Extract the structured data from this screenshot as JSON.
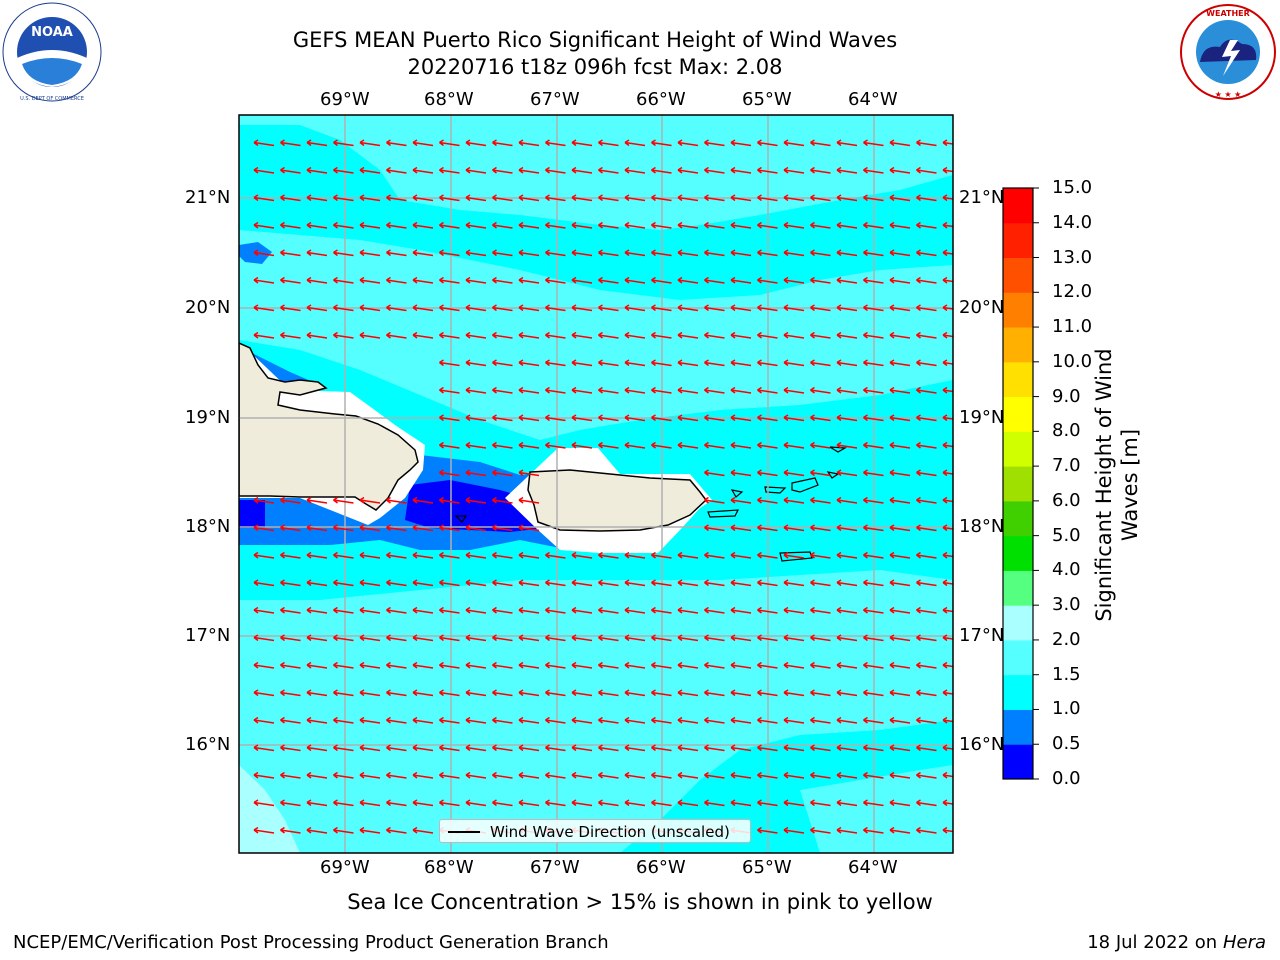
{
  "header": {
    "title_line1": "GEFS MEAN Puerto Rico Significant Height of Wind Waves",
    "title_line2": "20220716 t18z 096h fcst   Max: 2.08"
  },
  "logos": {
    "left": {
      "name": "NOAA",
      "ring_text": "NATIONAL OCEANIC AND ATMOSPHERIC ADMINISTRATION",
      "bottom_text": "U.S. DEPARTMENT OF COMMERCE"
    },
    "right": {
      "name": "NATIONAL WEATHER SERVICE"
    }
  },
  "map": {
    "lon_labels": [
      "69°W",
      "68°W",
      "67°W",
      "66°W",
      "65°W",
      "64°W"
    ],
    "lat_labels": [
      "21°N",
      "20°N",
      "19°N",
      "18°N",
      "17°N",
      "16°N"
    ],
    "legend_text": "Wind Wave Direction (unscaled)",
    "colors": {
      "ocean_base": "#00ffff",
      "light_cyan": "#55ffff",
      "pale_cyan": "#aaffff",
      "blue": "#0080ff",
      "dark_blue": "#0000ff",
      "land": "#efecdc",
      "arrow": "#ff0000",
      "gridline": "#b0b0b0"
    }
  },
  "colorbar": {
    "label": "Significant Height of Wind Waves [m]",
    "ticks": [
      "0.0",
      "0.5",
      "1.0",
      "1.5",
      "2.0",
      "3.0",
      "4.0",
      "5.0",
      "6.0",
      "7.0",
      "8.0",
      "9.0",
      "10.0",
      "11.0",
      "12.0",
      "13.0",
      "14.0",
      "15.0"
    ],
    "colors": [
      "#0000ff",
      "#0080ff",
      "#00ffff",
      "#55ffff",
      "#aaffff",
      "#55ff80",
      "#00e000",
      "#40d000",
      "#a0e000",
      "#d0ff00",
      "#ffff00",
      "#ffe000",
      "#ffb000",
      "#ff8000",
      "#ff5000",
      "#ff2000",
      "#ff0000"
    ]
  },
  "footer": {
    "note": "Sea Ice Concentration > 15% is shown in pink to yellow",
    "left": "NCEP/EMC/Verification Post Processing Product Generation Branch",
    "right_prefix": "18 Jul 2022 on ",
    "right_host": "Hera"
  }
}
